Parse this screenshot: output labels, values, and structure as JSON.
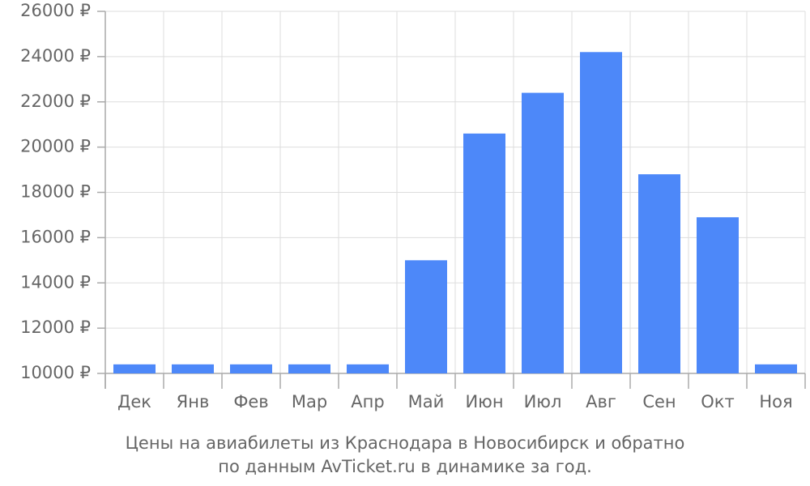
{
  "chart_data": {
    "type": "bar",
    "title": [
      "Цены на авиабилеты из Краснодара в Новосибирск и обратно",
      "по данным AvTicket.ru в динамике за год."
    ],
    "categories": [
      "Дек",
      "Янв",
      "Фев",
      "Мар",
      "Апр",
      "Май",
      "Июн",
      "Июл",
      "Авг",
      "Сен",
      "Окт",
      "Ноя"
    ],
    "values": [
      10400,
      10400,
      10400,
      10400,
      10400,
      15000,
      20600,
      22400,
      24200,
      18800,
      16900,
      10400
    ],
    "color": "#4d88f9",
    "ylim": [
      10000,
      26000
    ],
    "yticks": [
      {
        "value": 10000,
        "label": "10000 ₽"
      },
      {
        "value": 12000,
        "label": "12000 ₽"
      },
      {
        "value": 14000,
        "label": "14000 ₽"
      },
      {
        "value": 16000,
        "label": "16000 ₽"
      },
      {
        "value": 18000,
        "label": "18000 ₽"
      },
      {
        "value": 20000,
        "label": "20000 ₽"
      },
      {
        "value": 22000,
        "label": "22000 ₽"
      },
      {
        "value": 24000,
        "label": "24000 ₽"
      },
      {
        "value": 26000,
        "label": "26000 ₽"
      }
    ],
    "grid": true
  }
}
